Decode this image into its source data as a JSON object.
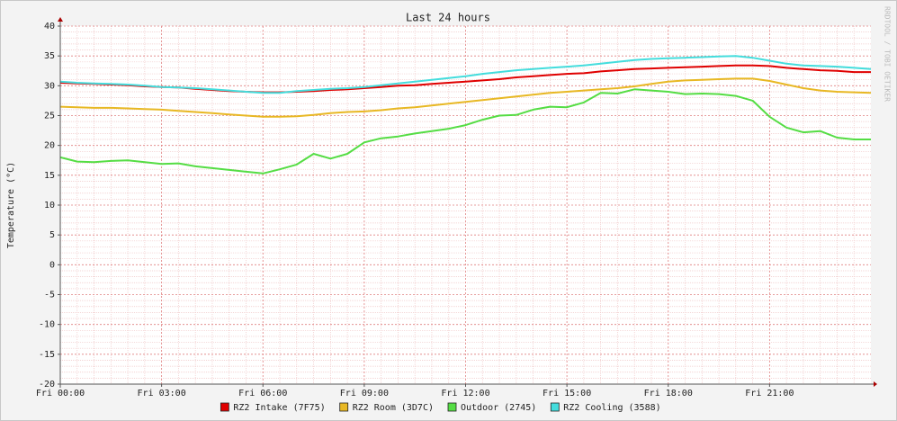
{
  "chart_data": {
    "type": "line",
    "title": "Last 24 hours",
    "y_label": "Temperature (°C)",
    "watermark": "RRDTOOL / TOBI OETIKER",
    "x": [
      0,
      0.5,
      1,
      1.5,
      2,
      2.5,
      3,
      3.5,
      4,
      4.5,
      5,
      5.5,
      6,
      6.5,
      7,
      7.5,
      8,
      8.5,
      9,
      9.5,
      10,
      10.5,
      11,
      11.5,
      12,
      12.5,
      13,
      13.5,
      14,
      14.5,
      15,
      15.5,
      16,
      16.5,
      17,
      17.5,
      18,
      18.5,
      19,
      19.5,
      20,
      20.5,
      21,
      21.5,
      22,
      22.5,
      23,
      23.5,
      24
    ],
    "series": [
      {
        "name": "RZ2 Intake (7F75)",
        "color": "#e00000",
        "values": [
          30.5,
          30.4,
          30.3,
          30.2,
          30.1,
          29.9,
          29.8,
          29.7,
          29.5,
          29.3,
          29.1,
          29.0,
          28.9,
          28.9,
          29.0,
          29.1,
          29.3,
          29.4,
          29.6,
          29.8,
          30.0,
          30.1,
          30.3,
          30.5,
          30.7,
          30.9,
          31.1,
          31.4,
          31.6,
          31.8,
          32.0,
          32.1,
          32.4,
          32.6,
          32.8,
          32.9,
          33.0,
          33.1,
          33.2,
          33.3,
          33.4,
          33.4,
          33.3,
          33.0,
          32.8,
          32.6,
          32.5,
          32.3,
          32.3
        ]
      },
      {
        "name": "RZ2 Room (3D7C)",
        "color": "#e8b824",
        "values": [
          26.5,
          26.4,
          26.3,
          26.3,
          26.2,
          26.1,
          26.0,
          25.8,
          25.6,
          25.4,
          25.2,
          25.0,
          24.8,
          24.8,
          24.9,
          25.1,
          25.4,
          25.6,
          25.7,
          25.9,
          26.2,
          26.4,
          26.7,
          27.0,
          27.3,
          27.6,
          27.9,
          28.2,
          28.5,
          28.8,
          29.0,
          29.2,
          29.4,
          29.6,
          29.9,
          30.3,
          30.7,
          30.9,
          31.0,
          31.1,
          31.2,
          31.2,
          30.8,
          30.2,
          29.6,
          29.2,
          29.0,
          28.9,
          28.8
        ]
      },
      {
        "name": "Outdoor (2745)",
        "color": "#55dd44",
        "values": [
          18.0,
          17.3,
          17.2,
          17.4,
          17.5,
          17.2,
          16.9,
          17.0,
          16.5,
          16.2,
          15.9,
          15.6,
          15.3,
          16.0,
          16.8,
          18.6,
          17.8,
          18.6,
          20.5,
          21.2,
          21.5,
          22.0,
          22.4,
          22.8,
          23.4,
          24.3,
          25.0,
          25.1,
          26.0,
          26.5,
          26.4,
          27.2,
          28.8,
          28.7,
          29.4,
          29.2,
          29.0,
          28.6,
          28.7,
          28.6,
          28.3,
          27.5,
          24.8,
          23.0,
          22.2,
          22.4,
          21.3,
          21.0,
          21.0
        ]
      },
      {
        "name": "RZ2 Cooling (3588)",
        "color": "#44dddd",
        "values": [
          30.7,
          30.5,
          30.4,
          30.3,
          30.2,
          30.0,
          29.8,
          29.7,
          29.6,
          29.4,
          29.2,
          29.0,
          28.8,
          28.8,
          29.1,
          29.3,
          29.5,
          29.6,
          29.8,
          30.1,
          30.4,
          30.7,
          31.0,
          31.3,
          31.6,
          32.0,
          32.3,
          32.6,
          32.8,
          33.0,
          33.2,
          33.4,
          33.7,
          34.0,
          34.3,
          34.5,
          34.6,
          34.7,
          34.8,
          34.9,
          35.0,
          34.7,
          34.2,
          33.7,
          33.4,
          33.3,
          33.2,
          33.0,
          32.8
        ]
      }
    ],
    "xlim": [
      0,
      24
    ],
    "xticks": [
      {
        "value": 0,
        "label": "Fri 00:00"
      },
      {
        "value": 3,
        "label": "Fri 03:00"
      },
      {
        "value": 6,
        "label": "Fri 06:00"
      },
      {
        "value": 9,
        "label": "Fri 09:00"
      },
      {
        "value": 12,
        "label": "Fri 12:00"
      },
      {
        "value": 15,
        "label": "Fri 15:00"
      },
      {
        "value": 18,
        "label": "Fri 18:00"
      },
      {
        "value": 21,
        "label": "Fri 21:00"
      }
    ],
    "ylim": [
      -20,
      40
    ],
    "yticks": [
      -20,
      -15,
      -10,
      -5,
      0,
      5,
      10,
      15,
      20,
      25,
      30,
      35,
      40
    ],
    "grid": true
  }
}
